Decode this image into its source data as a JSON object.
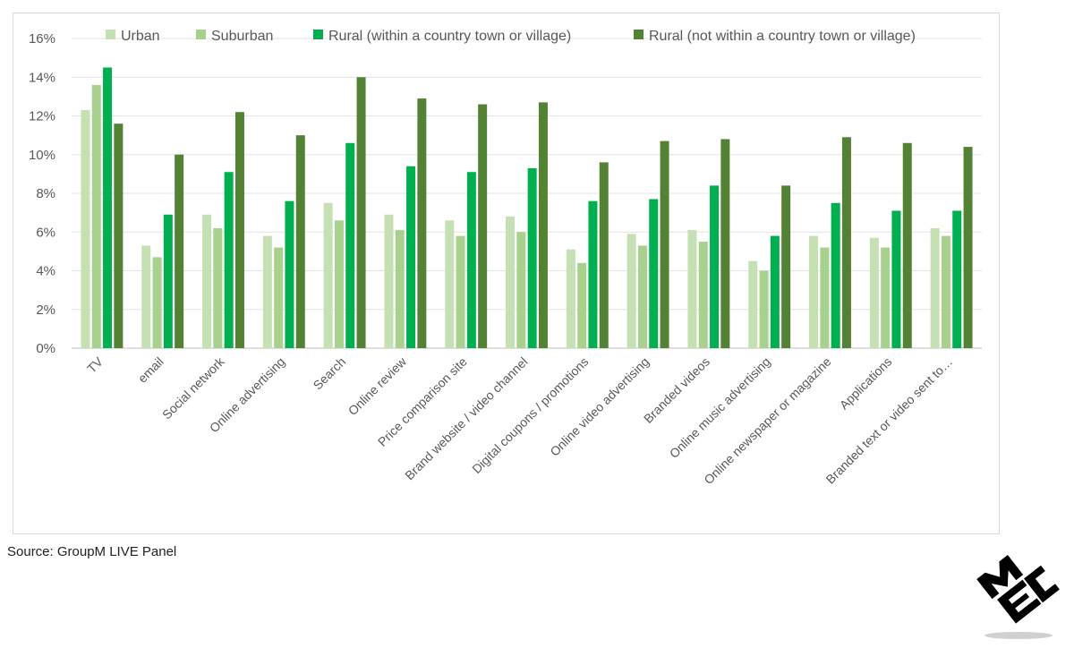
{
  "chart_data": {
    "type": "bar",
    "categories": [
      "TV",
      "email",
      "Social network",
      "Online advertising",
      "Search",
      "Online review",
      "Price comparison site",
      "Brand website / video channel",
      "Digital coupons / promotions",
      "Online video advertising",
      "Branded videos",
      "Online music advertising",
      "Online newspaper or magazine",
      "Applications",
      "Branded text or video sent to…"
    ],
    "series": [
      {
        "name": "Urban",
        "color": "#c5e0b3",
        "values": [
          12.3,
          5.3,
          6.9,
          5.8,
          7.5,
          6.9,
          6.6,
          6.8,
          5.1,
          5.9,
          6.1,
          4.5,
          5.8,
          5.7,
          6.2
        ]
      },
      {
        "name": "Suburban",
        "color": "#a9d18e",
        "values": [
          13.6,
          4.7,
          6.2,
          5.2,
          6.6,
          6.1,
          5.8,
          6.0,
          4.4,
          5.3,
          5.5,
          4.0,
          5.2,
          5.2,
          5.8
        ]
      },
      {
        "name": "Rural (within a country town or village)",
        "color": "#00b050",
        "values": [
          14.5,
          6.9,
          9.1,
          7.6,
          10.6,
          9.4,
          9.1,
          9.3,
          7.6,
          7.7,
          8.4,
          5.8,
          7.5,
          7.1,
          7.1
        ]
      },
      {
        "name": "Rural (not within a country town or village)",
        "color": "#548235",
        "values": [
          11.6,
          10.0,
          12.2,
          11.0,
          14.0,
          12.9,
          12.6,
          12.7,
          9.6,
          10.7,
          10.8,
          8.4,
          10.9,
          10.6,
          10.4
        ]
      }
    ],
    "yticks": [
      "0%",
      "2%",
      "4%",
      "6%",
      "8%",
      "10%",
      "12%",
      "14%",
      "16%"
    ],
    "ylim": [
      0,
      16
    ],
    "grid": true,
    "legend": "top"
  },
  "source": "Source: GroupM LIVE Panel",
  "logo": {
    "name": "MEC",
    "color": "#000000"
  }
}
